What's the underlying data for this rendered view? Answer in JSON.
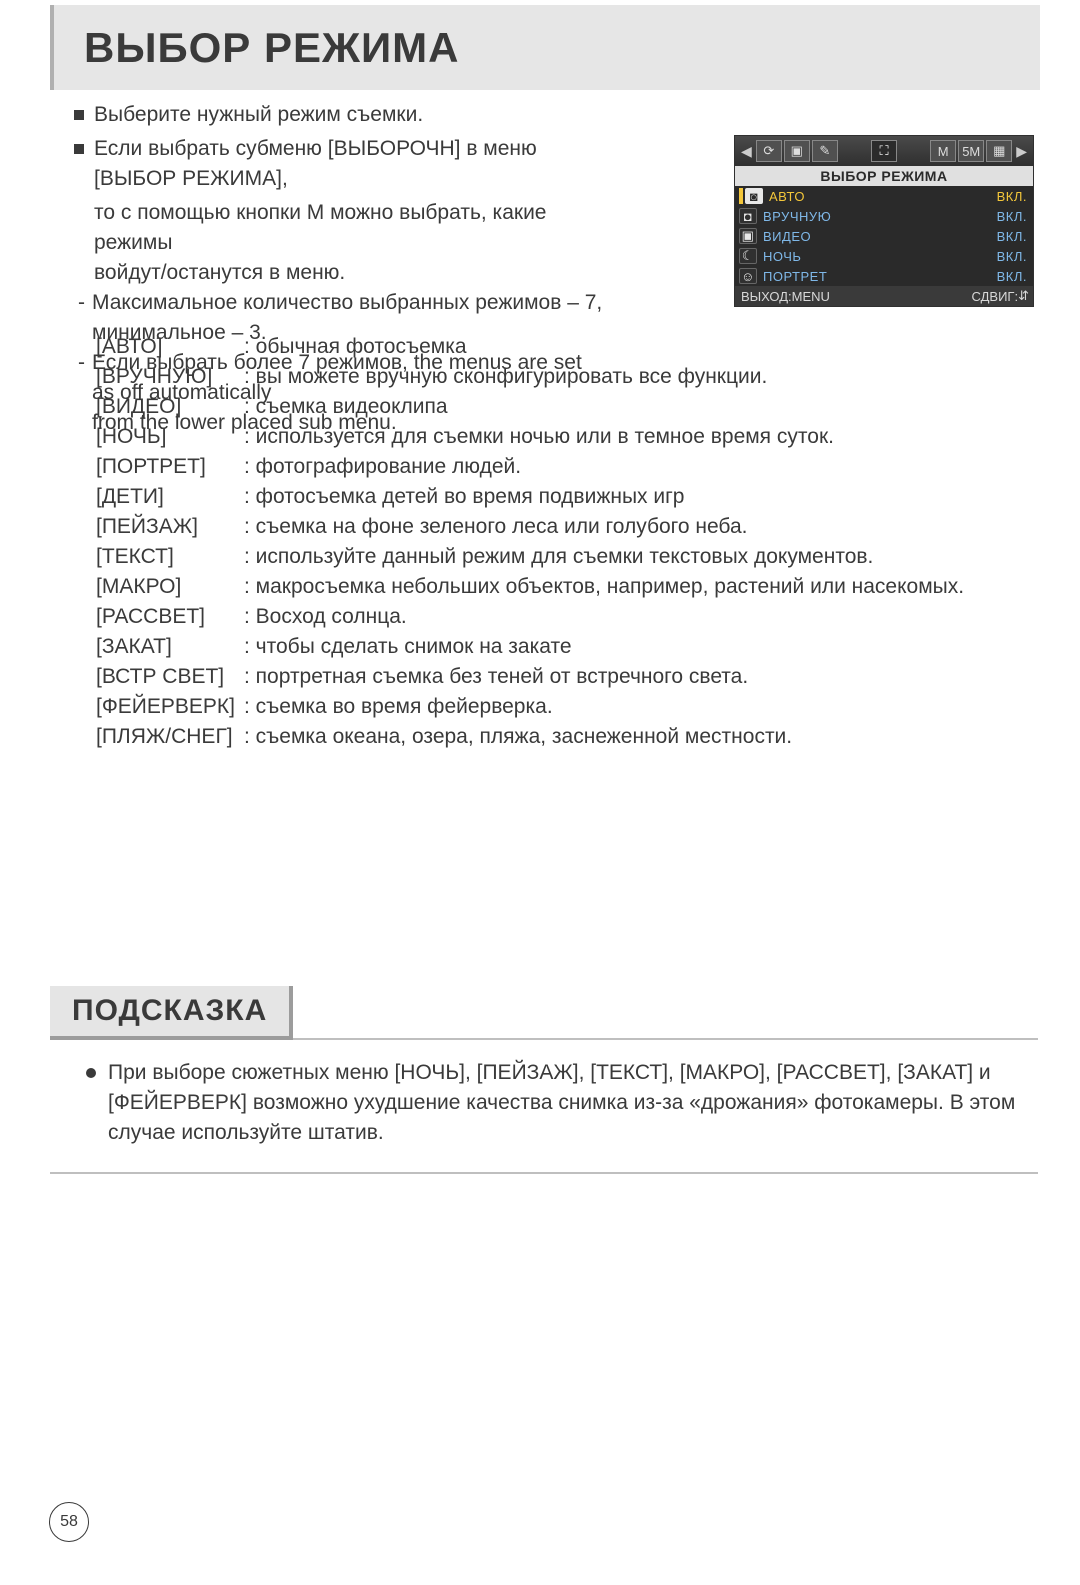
{
  "title": "ВЫБОР РЕЖИМА",
  "intro": {
    "b1": "Выберите нужный режим съемки.",
    "b2a": "Если выбрать субменю [ВЫБОРОЧН] в меню [ВЫБОР РЕЖИМА],",
    "b2b": "то с помощью кнопки M можно выбрать, какие режимы",
    "b2c": "войдут/останутся в меню.",
    "d1": "Максимальное количество выбранных режимов – 7,  минимальное – 3.",
    "d2a": "Если выбрать более 7 режимов, the menus are set as off automatically",
    "d2b": "from the lower placed sub menu."
  },
  "osd": {
    "tab_icons": [
      "⟳",
      "▣",
      "✎"
    ],
    "tab_mid": "⛶",
    "tab_right": [
      "M",
      "5M",
      "▦"
    ],
    "header": "ВЫБОР РЕЖИМА",
    "rows": [
      {
        "ico": "◙",
        "white": true,
        "name": "АВТО",
        "val": "ВКЛ.",
        "sel": true
      },
      {
        "ico": "◘",
        "white": false,
        "name": "ВРУЧНУЮ",
        "val": "ВКЛ.",
        "sel": false
      },
      {
        "ico": "▣",
        "white": false,
        "name": "ВИДЕО",
        "val": "ВКЛ.",
        "sel": false
      },
      {
        "ico": "☾",
        "white": false,
        "name": "НОЧЬ",
        "val": "ВКЛ.",
        "sel": false
      },
      {
        "ico": "☺",
        "white": false,
        "name": "ПОРТРЕТ",
        "val": "ВКЛ.",
        "sel": false
      }
    ],
    "footer_left": "ВЫХОД:MENU",
    "footer_right": "СДВИГ:",
    "footer_arrows": "⇵"
  },
  "modes": [
    {
      "term": "[АВТО]",
      "desc": ": обычная фотосъемка"
    },
    {
      "term": "[ВРУЧНУЮ]",
      "desc": ": вы можете вручную сконфигурировать все функции."
    },
    {
      "term": "[ВИДЕО]",
      "desc": ": съемка видеоклипа"
    },
    {
      "term": "[НОЧЬ]",
      "desc": ": используется для съемки ночью или в темное время суток."
    },
    {
      "term": "[ПОРТРЕТ]",
      "desc": ": фотографирование людей."
    },
    {
      "term": "[ДЕТИ]",
      "desc": ": фотосъемка детей во время подвижных игр"
    },
    {
      "term": "[ПЕЙЗАЖ]",
      "desc": ": съемка на фоне зеленого леса или голубого неба."
    },
    {
      "term": "[ТЕКСТ]",
      "desc": ": используйте данный режим для съемки текстовых документов."
    },
    {
      "term": "[МАКРО]",
      "desc": ": макросъемка небольших объектов, например, растений или насекомых."
    },
    {
      "term": "[РАССВЕТ]",
      "desc": ": Восход солнца."
    },
    {
      "term": "[ЗАКАТ]",
      "desc": ": чтобы сделать снимок на закате"
    },
    {
      "term": "[ВСТР СВЕТ]",
      "desc": ": портретная съемка без теней от встречного света."
    },
    {
      "term": "[ФЕЙЕРВЕРК]",
      "desc": ": съемка во время фейерверка."
    },
    {
      "term": "[ПЛЯЖ/СНЕГ]",
      "desc": ": съемка океана, озера, пляжа, заснеженной местности."
    }
  ],
  "hint": {
    "title": "ПОДСКАЗКА",
    "text": "При выборе сюжетных меню [НОЧЬ], [ПЕЙЗАЖ], [ТЕКСТ], [МАКРО], [РАССВЕТ], [ЗАКАТ] и [ФЕЙЕРВЕРК] возможно ухудшение качества снимка из-за «дрожания» фотокамеры. В этом случае используйте штатив."
  },
  "page_number": "58",
  "colors": {
    "page_bg": "#ffffff",
    "bar_bg": "#e6e6e6",
    "bar_side": "#b0b0b0",
    "text": "#3a3a3a",
    "osd_bg": "#2a2a2a",
    "osd_header_bg": "#e0e0e0",
    "osd_text_blue": "#7FB8E8",
    "osd_text_sel": "#F4C73A",
    "hint_shadow": "#9c9c9c",
    "rule": "#bfbfbf"
  }
}
